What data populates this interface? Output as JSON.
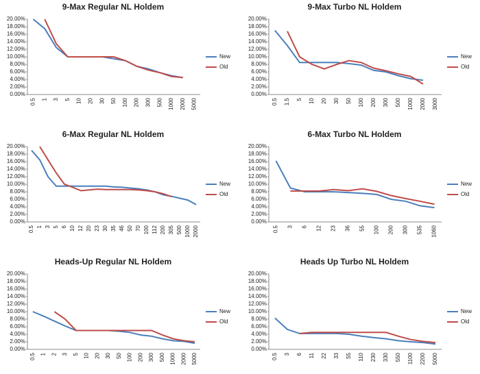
{
  "chart_data": [
    {
      "type": "line",
      "title": "9-Max Regular NL Holdem",
      "categories": [
        "0.5",
        "1",
        "3",
        "5",
        "10",
        "20",
        "30",
        "50",
        "100",
        "200",
        "300",
        "500",
        "1000",
        "2000",
        "5000"
      ],
      "series": [
        {
          "name": "New",
          "color": "#4a7ebb",
          "values": [
            20,
            17.5,
            12.5,
            10,
            10,
            10,
            10,
            9.5,
            9,
            7.5,
            6.8,
            5.8,
            5,
            4.5,
            null
          ]
        },
        {
          "name": "Old",
          "color": "#be4b48",
          "values": [
            null,
            20,
            13.5,
            10,
            10,
            10,
            10,
            10,
            9,
            7.5,
            6.5,
            5.8,
            4.8,
            4.5,
            null
          ]
        }
      ],
      "ylim": [
        0,
        20
      ],
      "yticks": [
        {
          "value": 0,
          "label": "0.00%"
        },
        {
          "value": 2,
          "label": "2.00%"
        },
        {
          "value": 4,
          "label": "4.00%"
        },
        {
          "value": 6,
          "label": "6.00%"
        },
        {
          "value": 8,
          "label": "8.00%"
        },
        {
          "value": 10,
          "label": "10.00%"
        },
        {
          "value": 12,
          "label": "12.00%"
        },
        {
          "value": 14,
          "label": "14.00%"
        },
        {
          "value": 16,
          "label": "16.00%"
        },
        {
          "value": 18,
          "label": "18.00%"
        },
        {
          "value": 20,
          "label": "20.00%"
        }
      ],
      "grid": false,
      "legend": "right"
    },
    {
      "type": "line",
      "title": "9-Max Turbo NL Holdem",
      "categories": [
        "0.5",
        "1.5",
        "5",
        "10",
        "20",
        "30",
        "50",
        "100",
        "200",
        "300",
        "500",
        "1000",
        "2000",
        "3000"
      ],
      "series": [
        {
          "name": "New",
          "color": "#4a7ebb",
          "values": [
            17,
            13,
            8.5,
            8.5,
            8.5,
            8.5,
            8.2,
            7.8,
            6.4,
            6,
            5,
            4.2,
            3.8,
            null
          ]
        },
        {
          "name": "Old",
          "color": "#be4b48",
          "values": [
            null,
            16.8,
            10,
            8,
            6.8,
            8,
            9,
            8.5,
            7,
            6.3,
            5.5,
            4.8,
            2.8,
            null
          ]
        }
      ],
      "ylim": [
        0,
        20
      ],
      "yticks": [
        {
          "value": 0,
          "label": "0.00%"
        },
        {
          "value": 2,
          "label": "2.00%"
        },
        {
          "value": 4,
          "label": "4.00%"
        },
        {
          "value": 6,
          "label": "6.00%"
        },
        {
          "value": 8,
          "label": "8.00%"
        },
        {
          "value": 10,
          "label": "10.00%"
        },
        {
          "value": 12,
          "label": "12.00%"
        },
        {
          "value": 14,
          "label": "14.00%"
        },
        {
          "value": 16,
          "label": "16.00%"
        },
        {
          "value": 18,
          "label": "18.00%"
        },
        {
          "value": 20,
          "label": "20.00%"
        }
      ],
      "grid": false,
      "legend": "right"
    },
    {
      "type": "line",
      "title": "6-Max Regular NL Holdem",
      "categories": [
        "0.5",
        "1",
        "3",
        "5",
        "6",
        "10",
        "12",
        "20",
        "23",
        "30",
        "35",
        "46",
        "50",
        "70",
        "100",
        "112",
        "200",
        "305",
        "500",
        "1000",
        "2000"
      ],
      "series": [
        {
          "name": "New",
          "color": "#4a7ebb",
          "values": [
            19,
            16.5,
            12,
            9.5,
            9.5,
            9.5,
            9.5,
            9.5,
            9.5,
            9.5,
            9.3,
            9.2,
            9,
            8.8,
            8.5,
            8,
            7.2,
            6.8,
            6.3,
            5.8,
            4.6
          ]
        },
        {
          "name": "Old",
          "color": "#be4b48",
          "values": [
            null,
            20,
            16.5,
            13,
            10,
            9.2,
            8.3,
            8.5,
            8.7,
            8.6,
            8.6,
            8.6,
            8.6,
            8.5,
            8.3,
            8,
            7.5,
            6.7,
            null,
            null,
            null
          ]
        }
      ],
      "ylim": [
        0,
        20
      ],
      "yticks": [
        {
          "value": 0,
          "label": "0.00%"
        },
        {
          "value": 2,
          "label": "2.00%"
        },
        {
          "value": 4,
          "label": "4.00%"
        },
        {
          "value": 6,
          "label": "6.00%"
        },
        {
          "value": 8,
          "label": "8.00%"
        },
        {
          "value": 10,
          "label": "10.00%"
        },
        {
          "value": 12,
          "label": "12.00%"
        },
        {
          "value": 14,
          "label": "14.00%"
        },
        {
          "value": 16,
          "label": "16.00%"
        },
        {
          "value": 18,
          "label": "18.00%"
        },
        {
          "value": 20,
          "label": "20.00%"
        }
      ],
      "grid": false,
      "legend": "right"
    },
    {
      "type": "line",
      "title": "6-Max Turbo NL Holdem",
      "categories": [
        "0.5",
        "3",
        "6",
        "12",
        "23",
        "36",
        "55",
        "100",
        "200",
        "300",
        "535",
        "1060"
      ],
      "series": [
        {
          "name": "New",
          "color": "#4a7ebb",
          "values": [
            16.2,
            9,
            8,
            8,
            8,
            7.8,
            7.6,
            7.3,
            6,
            5.5,
            4.3,
            3.8
          ]
        },
        {
          "name": "Old",
          "color": "#be4b48",
          "values": [
            null,
            8.2,
            8.2,
            8.2,
            8.6,
            8.3,
            8.8,
            8.1,
            7,
            6.2,
            5.5,
            4.7
          ]
        }
      ],
      "ylim": [
        0,
        20
      ],
      "yticks": [
        {
          "value": 0,
          "label": "0.00%"
        },
        {
          "value": 2,
          "label": "2.00%"
        },
        {
          "value": 4,
          "label": "4.00%"
        },
        {
          "value": 6,
          "label": "6.00%"
        },
        {
          "value": 8,
          "label": "8.00%"
        },
        {
          "value": 10,
          "label": "10.00%"
        },
        {
          "value": 12,
          "label": "12.00%"
        },
        {
          "value": 14,
          "label": "14.00%"
        },
        {
          "value": 16,
          "label": "16.00%"
        },
        {
          "value": 18,
          "label": "18.00%"
        },
        {
          "value": 20,
          "label": "20.00%"
        }
      ],
      "grid": false,
      "legend": "right"
    },
    {
      "type": "line",
      "title": "Heads-Up Regular NL Holdem",
      "categories": [
        "0.5",
        "1",
        "2",
        "3",
        "5",
        "10",
        "20",
        "30",
        "50",
        "100",
        "200",
        "300",
        "500",
        "1000",
        "2000",
        "5000"
      ],
      "series": [
        {
          "name": "New",
          "color": "#4a7ebb",
          "values": [
            10,
            8.8,
            7.5,
            6.2,
            5,
            5,
            5,
            5,
            4.8,
            4.5,
            3.8,
            3.5,
            2.8,
            2.3,
            2.1,
            1.6
          ]
        },
        {
          "name": "Old",
          "color": "#be4b48",
          "values": [
            null,
            null,
            10,
            8,
            5,
            5,
            5,
            5,
            5,
            5,
            5,
            5,
            3.8,
            2.8,
            2.3,
            2
          ]
        }
      ],
      "ylim": [
        0,
        20
      ],
      "yticks": [
        {
          "value": 0,
          "label": "0.00%"
        },
        {
          "value": 2,
          "label": "2.00%"
        },
        {
          "value": 4,
          "label": "4.00%"
        },
        {
          "value": 6,
          "label": "6.00%"
        },
        {
          "value": 8,
          "label": "8.00%"
        },
        {
          "value": 10,
          "label": "10.00%"
        },
        {
          "value": 12,
          "label": "12.00%"
        },
        {
          "value": 14,
          "label": "14.00%"
        },
        {
          "value": 16,
          "label": "16.00%"
        },
        {
          "value": 18,
          "label": "18.00%"
        },
        {
          "value": 20,
          "label": "20.00%"
        }
      ],
      "grid": false,
      "legend": "right"
    },
    {
      "type": "line",
      "title": "Heads Up Turbo NL Holdem",
      "categories": [
        "0.5",
        "3",
        "6",
        "11",
        "22",
        "33",
        "55",
        "110",
        "230",
        "330",
        "550",
        "1100",
        "2200",
        "5000"
      ],
      "series": [
        {
          "name": "New",
          "color": "#4a7ebb",
          "values": [
            8.3,
            5.3,
            4.2,
            4.2,
            4.2,
            4.2,
            4,
            3.5,
            3.1,
            2.8,
            2.3,
            2,
            1.8,
            1.4
          ]
        },
        {
          "name": "Old",
          "color": "#be4b48",
          "values": [
            null,
            null,
            4.2,
            4.5,
            4.5,
            4.5,
            4.5,
            4.5,
            4.5,
            4.5,
            3.5,
            2.6,
            2.1,
            1.8
          ]
        }
      ],
      "ylim": [
        0,
        20
      ],
      "yticks": [
        {
          "value": 0,
          "label": "0.00%"
        },
        {
          "value": 2,
          "label": "2.00%"
        },
        {
          "value": 4,
          "label": "4.00%"
        },
        {
          "value": 6,
          "label": "6.00%"
        },
        {
          "value": 8,
          "label": "8.00%"
        },
        {
          "value": 10,
          "label": "10.00%"
        },
        {
          "value": 12,
          "label": "12.00%"
        },
        {
          "value": 14,
          "label": "14.00%"
        },
        {
          "value": 16,
          "label": "16.00%"
        },
        {
          "value": 18,
          "label": "18.00%"
        },
        {
          "value": 20,
          "label": "20.00%"
        }
      ],
      "grid": false,
      "legend": "right"
    }
  ]
}
